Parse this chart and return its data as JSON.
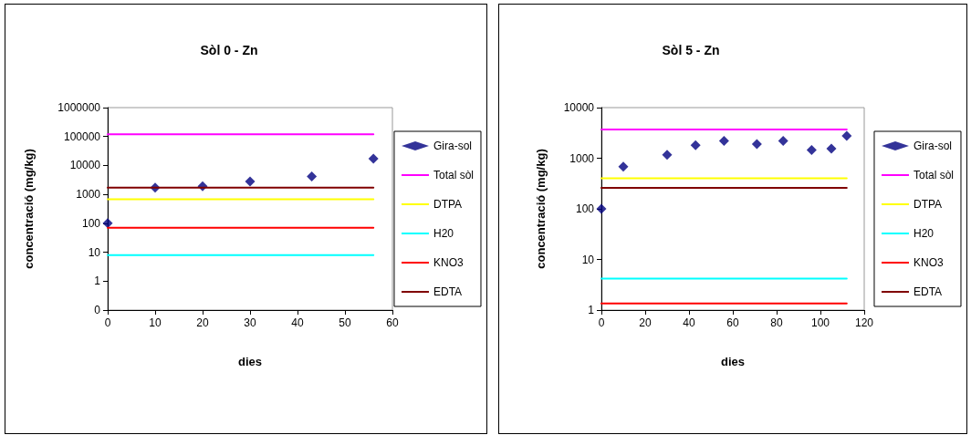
{
  "chart_data": [
    {
      "type": "scatter",
      "title": "Sòl 0 - Zn",
      "xlabel": "dies",
      "ylabel": "concentració (mg/kg)",
      "log": "y",
      "grid": false,
      "legend": "right",
      "line_style": "solid",
      "xlim": [
        0,
        60
      ],
      "xticks": [
        0,
        10,
        20,
        30,
        40,
        50,
        60
      ],
      "ylim": [
        0.1,
        1000000
      ],
      "yticks": [
        {
          "value": 0.1,
          "label": "0"
        },
        1,
        10,
        100,
        1000,
        10000,
        100000,
        1000000
      ],
      "series": [
        {
          "name": "Gira-sol",
          "marker": "diamond",
          "color": "#000080",
          "x": [
            0,
            10,
            20,
            30,
            43,
            56
          ],
          "values": [
            100,
            1700,
            1900,
            2800,
            4200,
            17000
          ]
        },
        {
          "name": "Total sòl",
          "type": "line",
          "marker": "none",
          "color": "#ff00ff",
          "x": [
            0,
            56
          ],
          "values": [
            120000,
            120000
          ]
        },
        {
          "name": "DTPA",
          "type": "line",
          "marker": "none",
          "color": "#ffff00",
          "x": [
            0,
            56
          ],
          "values": [
            680,
            680
          ]
        },
        {
          "name": "H20",
          "type": "line",
          "marker": "none",
          "color": "#00ffff",
          "x": [
            0,
            56
          ],
          "values": [
            8,
            8
          ]
        },
        {
          "name": "KNO3",
          "type": "line",
          "marker": "none",
          "color": "#ff0000",
          "x": [
            0,
            56
          ],
          "values": [
            70,
            70
          ]
        },
        {
          "name": "EDTA",
          "type": "line",
          "marker": "none",
          "color": "#800000",
          "x": [
            0,
            56
          ],
          "values": [
            1700,
            1700
          ]
        }
      ]
    },
    {
      "type": "scatter",
      "title": "Sòl 5 - Zn",
      "xlabel": "dies",
      "ylabel": "concentració (mg/kg)",
      "log": "y",
      "grid": false,
      "legend": "right",
      "line_style": "solid",
      "xlim": [
        0,
        120
      ],
      "xticks": [
        0,
        20,
        40,
        60,
        80,
        100,
        120
      ],
      "ylim": [
        1,
        10000
      ],
      "yticks": [
        1,
        10,
        100,
        1000,
        10000
      ],
      "series": [
        {
          "name": "Gira-sol",
          "marker": "diamond",
          "color": "#000080",
          "x": [
            0,
            10,
            30,
            43,
            56,
            71,
            83,
            96,
            105,
            112
          ],
          "values": [
            100,
            680,
            1170,
            1800,
            2200,
            1900,
            2200,
            1450,
            1550,
            2750
          ]
        },
        {
          "name": "Total sòl",
          "type": "line",
          "marker": "none",
          "color": "#ff00ff",
          "x": [
            0,
            112
          ],
          "values": [
            3700,
            3700
          ]
        },
        {
          "name": "DTPA",
          "type": "line",
          "marker": "none",
          "color": "#ffff00",
          "x": [
            0,
            112
          ],
          "values": [
            400,
            400
          ]
        },
        {
          "name": "H20",
          "type": "line",
          "marker": "none",
          "color": "#00ffff",
          "x": [
            0,
            112
          ],
          "values": [
            4.2,
            4.2
          ]
        },
        {
          "name": "KNO3",
          "type": "line",
          "marker": "none",
          "color": "#ff0000",
          "x": [
            0,
            112
          ],
          "values": [
            1.35,
            1.35
          ]
        },
        {
          "name": "EDTA",
          "type": "line",
          "marker": "none",
          "color": "#800000",
          "x": [
            0,
            112
          ],
          "values": [
            260,
            260
          ]
        }
      ]
    }
  ]
}
